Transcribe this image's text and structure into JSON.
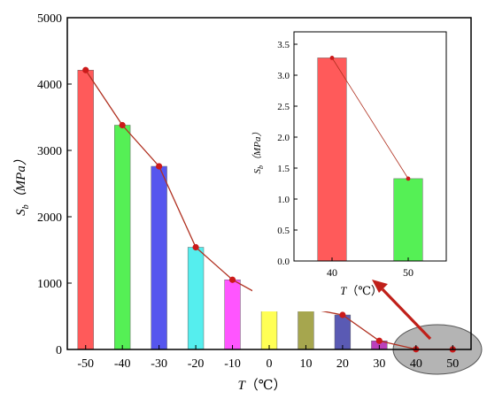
{
  "chart_data": [
    {
      "type": "bar",
      "categories": [
        "-50",
        "-40",
        "-30",
        "-20",
        "-10",
        "0",
        "10",
        "20",
        "30",
        "40",
        "50"
      ],
      "values": [
        4210,
        3380,
        2760,
        1540,
        1050,
        745,
        625,
        520,
        130,
        3.28,
        1.33
      ],
      "bar_colors": [
        "#ff5a5a",
        "#55f055",
        "#5656ee",
        "#55eeee",
        "#ff55ff",
        "#ffff55",
        "#a6a64e",
        "#5a5ab4",
        "#bb40bb",
        "#ff5a5a",
        "#55f055"
      ],
      "ylabel_main": "S",
      "ylabel_sub": "b",
      "ylabel_unit": "（MPa）",
      "xlabel_main": "T",
      "xlabel_unit": "（℃）",
      "ylim": [
        0,
        5000
      ],
      "yticks": [
        "0",
        "1000",
        "2000",
        "3000",
        "4000",
        "5000"
      ],
      "line_color": "#b03020",
      "marker_color": "#cc1a1a",
      "legend": "none",
      "grid": false
    },
    {
      "type": "bar",
      "categories": [
        "40",
        "50"
      ],
      "values": [
        3.28,
        1.33
      ],
      "bar_colors": [
        "#ff5a5a",
        "#55f055"
      ],
      "ylabel_main": "S",
      "ylabel_sub": "b",
      "ylabel_unit": "（MPa）",
      "xlabel_main": "T",
      "xlabel_unit": "（℃）",
      "ylim": [
        0,
        3.7
      ],
      "yticks": [
        "0.0",
        "0.5",
        "1.0",
        "1.5",
        "2.0",
        "2.5",
        "3.0",
        "3.5"
      ],
      "line_color": "#b03020",
      "marker_color": "#cc1a1a",
      "legend": "none",
      "grid": false
    }
  ],
  "annotation": {
    "highlight_fill": "#b4b4b4",
    "arrow_color": "#c0201a"
  }
}
